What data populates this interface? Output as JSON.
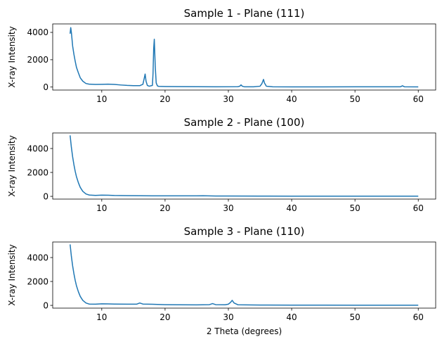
{
  "chart_data": [
    {
      "type": "line",
      "title": "Sample 1 - Plane (111)",
      "xlabel": "",
      "ylabel": "X-ray Intensity",
      "xlim": [
        2.25,
        62.75
      ],
      "ylim": [
        -220,
        4620
      ],
      "xticks": [
        10,
        20,
        30,
        40,
        50,
        60
      ],
      "yticks": [
        0,
        2000,
        4000
      ],
      "grid": false,
      "color": "#1f77b4",
      "series": [
        {
          "x": [
            5.0,
            5.1,
            5.2,
            5.3,
            5.4,
            5.6,
            5.8,
            6.0,
            6.3,
            6.6,
            7.0,
            7.5,
            8.0,
            9.0,
            10.0,
            11.0,
            12.0,
            13.0,
            14.0,
            15.0,
            16.0,
            16.5,
            16.7,
            16.85,
            17.0,
            17.2,
            17.5,
            18.0,
            18.1,
            18.2,
            18.3,
            18.45,
            18.6,
            18.8,
            19.0,
            20.0,
            22.0,
            25.0,
            28.0,
            31.5,
            31.8,
            32.0,
            32.2,
            32.5,
            34.0,
            35.0,
            35.3,
            35.55,
            35.7,
            36.0,
            37.0,
            40.0,
            45.0,
            50.0,
            55.0,
            57.2,
            57.5,
            57.8,
            60.0
          ],
          "y": [
            3900,
            4350,
            4000,
            3500,
            3000,
            2400,
            1900,
            1450,
            1050,
            680,
            430,
            260,
            210,
            190,
            200,
            210,
            190,
            150,
            120,
            100,
            100,
            200,
            620,
            950,
            420,
            120,
            60,
            120,
            1000,
            2800,
            3500,
            1500,
            300,
            80,
            50,
            40,
            30,
            25,
            20,
            25,
            60,
            160,
            60,
            20,
            20,
            60,
            250,
            560,
            300,
            60,
            20,
            15,
            15,
            20,
            20,
            20,
            90,
            20,
            10
          ]
        }
      ]
    },
    {
      "type": "line",
      "title": "Sample 2 - Plane (100)",
      "xlabel": "",
      "ylabel": "X-ray Intensity",
      "xlim": [
        2.25,
        62.75
      ],
      "ylim": [
        -230,
        5300
      ],
      "xticks": [
        10,
        20,
        30,
        40,
        50,
        60
      ],
      "yticks": [
        0,
        2000,
        4000
      ],
      "grid": false,
      "color": "#1f77b4",
      "series": [
        {
          "x": [
            5.0,
            5.2,
            5.4,
            5.6,
            5.8,
            6.0,
            6.3,
            6.6,
            7.0,
            7.5,
            8.0,
            9.0,
            10.0,
            11.0,
            12.0,
            14.0,
            16.0,
            18.0,
            20.0,
            22.0,
            25.0,
            26.0,
            28.0,
            30.0,
            35.0,
            40.0,
            45.0,
            50.0,
            55.0,
            60.0
          ],
          "y": [
            5100,
            4100,
            3300,
            2650,
            2100,
            1650,
            1150,
            750,
            420,
            200,
            110,
            80,
            100,
            90,
            70,
            60,
            50,
            45,
            40,
            40,
            40,
            50,
            30,
            25,
            20,
            15,
            15,
            10,
            10,
            10
          ]
        }
      ]
    },
    {
      "type": "line",
      "title": "Sample 3 - Plane (110)",
      "xlabel": "2 Theta (degrees)",
      "ylabel": "X-ray Intensity",
      "xlim": [
        2.25,
        62.75
      ],
      "ylim": [
        -230,
        5300
      ],
      "xticks": [
        10,
        20,
        30,
        40,
        50,
        60
      ],
      "yticks": [
        0,
        2000,
        4000
      ],
      "grid": false,
      "color": "#1f77b4",
      "series": [
        {
          "x": [
            5.0,
            5.2,
            5.4,
            5.6,
            5.8,
            6.0,
            6.3,
            6.6,
            7.0,
            7.5,
            8.0,
            9.0,
            10.0,
            11.0,
            12.0,
            14.0,
            15.5,
            16.0,
            16.5,
            18.0,
            20.0,
            22.0,
            25.0,
            27.0,
            27.5,
            28.0,
            29.5,
            30.0,
            30.35,
            30.6,
            30.9,
            31.5,
            35.0,
            40.0,
            45.0,
            50.0,
            55.0,
            60.0
          ],
          "y": [
            5100,
            4100,
            3300,
            2650,
            2100,
            1650,
            1150,
            750,
            420,
            200,
            110,
            100,
            130,
            120,
            110,
            100,
            100,
            200,
            110,
            90,
            60,
            50,
            40,
            60,
            150,
            60,
            50,
            100,
            250,
            420,
            200,
            50,
            30,
            20,
            20,
            15,
            15,
            10
          ]
        }
      ]
    }
  ]
}
